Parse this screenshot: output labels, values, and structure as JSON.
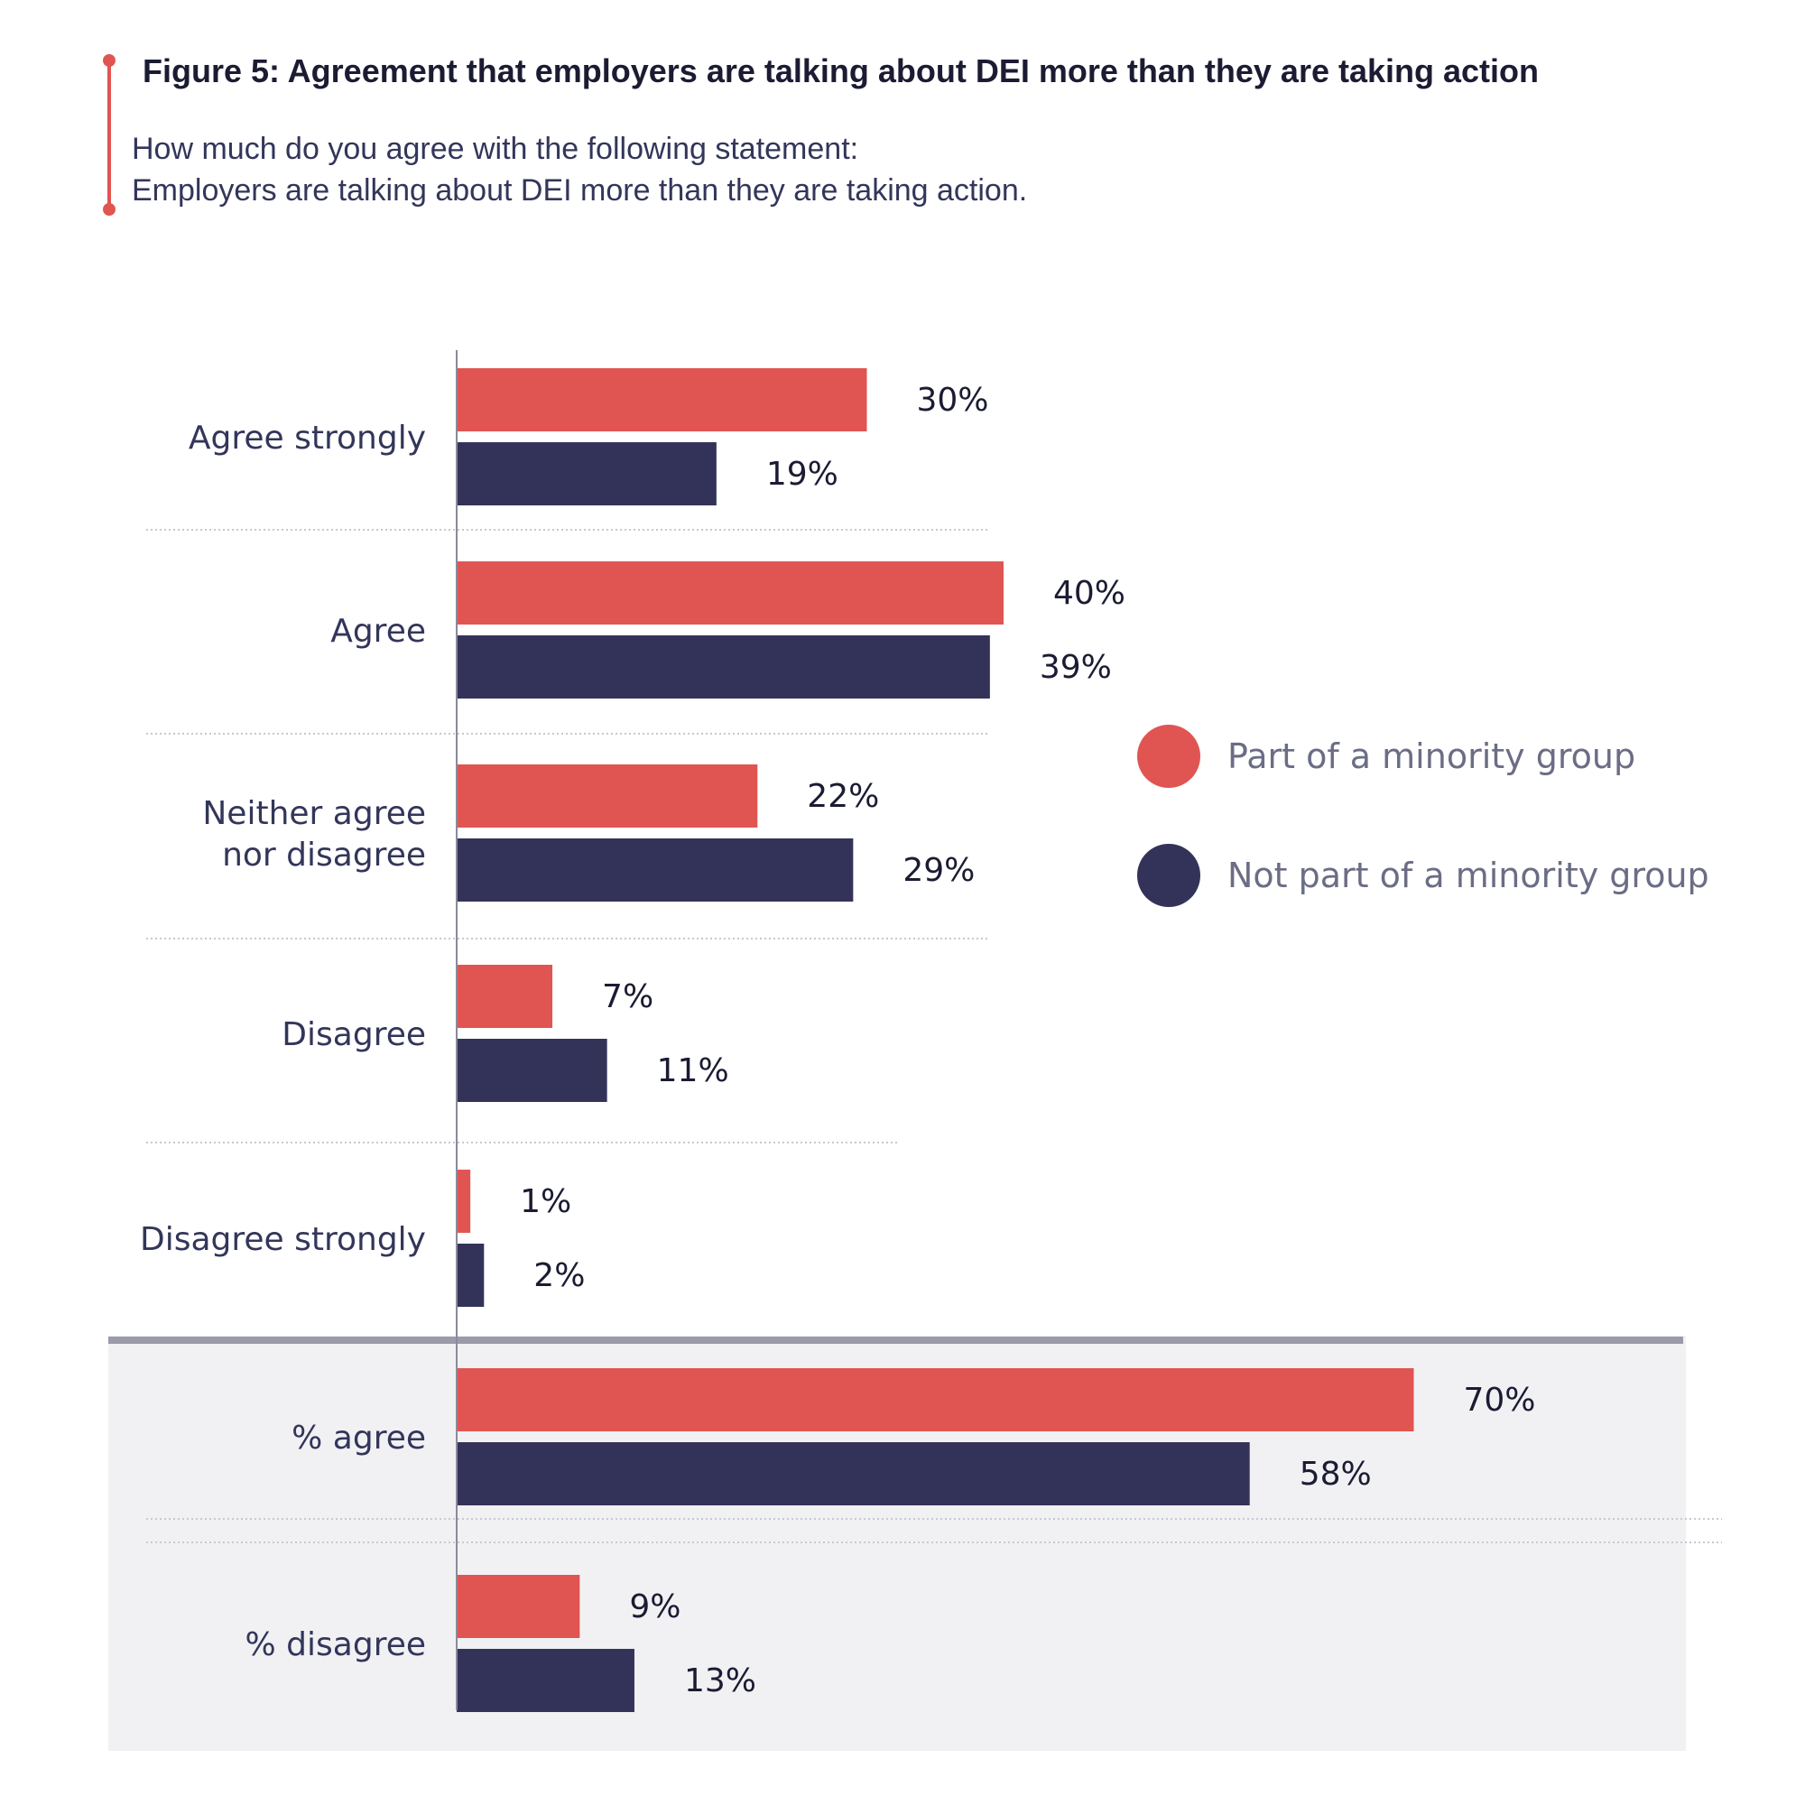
{
  "figure": {
    "title": "Figure 5: Agreement that employers are talking about DEI more than they are taking action",
    "subtitle_line1": "How much do you agree with the following statement:",
    "subtitle_line2": "Employers are talking about DEI more than they are taking action."
  },
  "colors": {
    "minority": "#e05552",
    "not_minority": "#33335a",
    "summary_bg": "#f1f1f4",
    "summary_rule": "#9a9aaa",
    "label": "#33365a",
    "value": "#1b1b33",
    "legend_text": "#6b6d85"
  },
  "chart_data": {
    "type": "bar",
    "orientation": "horizontal",
    "unit": "%",
    "xlim": [
      0,
      100
    ],
    "categories": [
      "Agree strongly",
      "Agree",
      "Neither agree nor disagree",
      "Disagree",
      "Disagree strongly"
    ],
    "summary_categories": [
      "% agree",
      "% disagree"
    ],
    "series": [
      {
        "name": "Part of a minority group",
        "values": [
          30,
          40,
          22,
          7,
          1
        ],
        "summary_values": [
          70,
          9
        ],
        "color": "#e05552"
      },
      {
        "name": "Not part of a minority group",
        "values": [
          19,
          39,
          29,
          11,
          2
        ],
        "summary_values": [
          58,
          13
        ],
        "color": "#33335a"
      }
    ],
    "legend_position": "right",
    "grid": false
  }
}
